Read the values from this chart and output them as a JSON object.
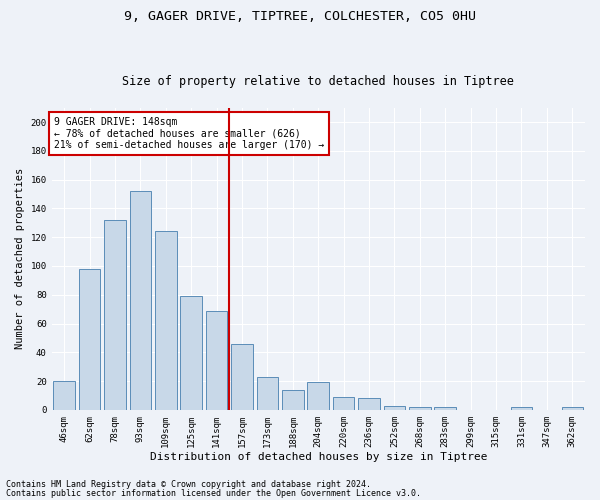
{
  "title1": "9, GAGER DRIVE, TIPTREE, COLCHESTER, CO5 0HU",
  "title2": "Size of property relative to detached houses in Tiptree",
  "xlabel": "Distribution of detached houses by size in Tiptree",
  "ylabel": "Number of detached properties",
  "categories": [
    "46sqm",
    "62sqm",
    "78sqm",
    "93sqm",
    "109sqm",
    "125sqm",
    "141sqm",
    "157sqm",
    "173sqm",
    "188sqm",
    "204sqm",
    "220sqm",
    "236sqm",
    "252sqm",
    "268sqm",
    "283sqm",
    "299sqm",
    "315sqm",
    "331sqm",
    "347sqm",
    "362sqm"
  ],
  "values": [
    20,
    98,
    132,
    152,
    124,
    79,
    69,
    46,
    23,
    14,
    19,
    9,
    8,
    3,
    2,
    2,
    0,
    0,
    2,
    0,
    2
  ],
  "bar_color": "#c8d8e8",
  "bar_edge_color": "#5b8db8",
  "vline_x": 6.5,
  "vline_color": "#cc0000",
  "annotation_text": "9 GAGER DRIVE: 148sqm\n← 78% of detached houses are smaller (626)\n21% of semi-detached houses are larger (170) →",
  "annotation_box_color": "#ffffff",
  "annotation_box_edge": "#cc0000",
  "ylim": [
    0,
    210
  ],
  "yticks": [
    0,
    20,
    40,
    60,
    80,
    100,
    120,
    140,
    160,
    180,
    200
  ],
  "footer1": "Contains HM Land Registry data © Crown copyright and database right 2024.",
  "footer2": "Contains public sector information licensed under the Open Government Licence v3.0.",
  "bg_color": "#eef2f8",
  "grid_color": "#ffffff",
  "title1_fontsize": 9.5,
  "title2_fontsize": 8.5,
  "xlabel_fontsize": 8,
  "ylabel_fontsize": 7.5,
  "tick_fontsize": 6.5,
  "annot_fontsize": 7,
  "footer_fontsize": 6
}
